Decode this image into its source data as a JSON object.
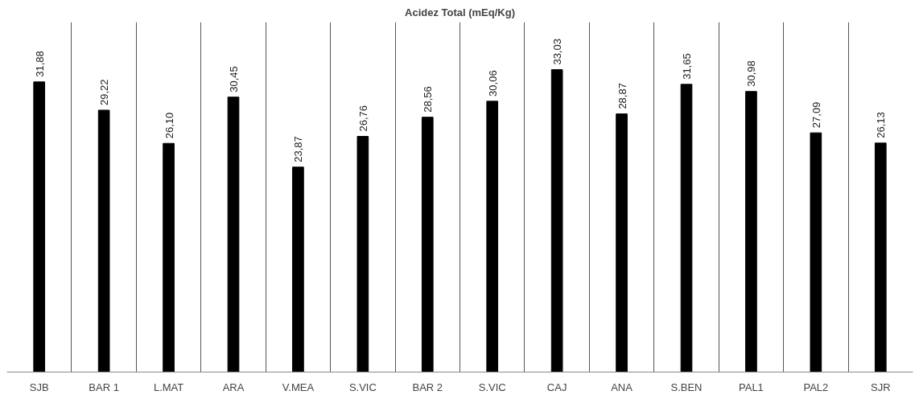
{
  "chart_data": {
    "type": "bar",
    "title": "Acidez Total (mEq/Kg)",
    "categories": [
      "SJB",
      "BAR 1",
      "L.MAT",
      "ARA",
      "V.MEA",
      "S.VIC",
      "BAR 2",
      "S.VIC",
      "CAJ",
      "ANA",
      "S.BEN",
      "PAL1",
      "PAL2",
      "SJR"
    ],
    "values": [
      31.88,
      29.22,
      26.1,
      30.45,
      23.87,
      26.76,
      28.56,
      30.06,
      33.03,
      28.87,
      31.65,
      30.98,
      27.09,
      26.13
    ],
    "value_labels": [
      "31,88",
      "29,22",
      "26,10",
      "30,45",
      "23,87",
      "26,76",
      "28,56",
      "30,06",
      "33,03",
      "28,87",
      "31,65",
      "30,98",
      "27,09",
      "26,13"
    ],
    "color": "#000000",
    "ylim": [
      4.6,
      37.5
    ],
    "grid": "x"
  }
}
